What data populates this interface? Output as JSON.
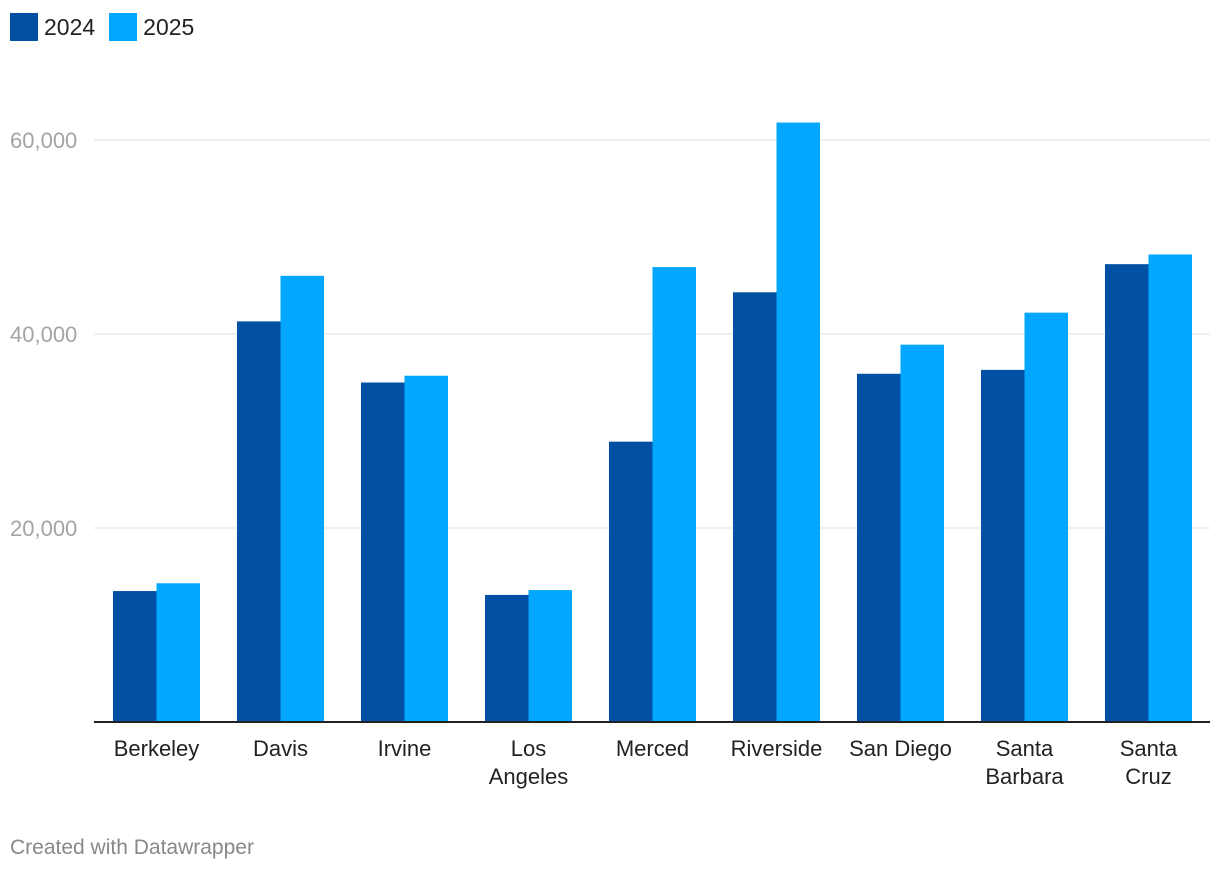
{
  "chart_data": {
    "type": "bar",
    "title": "",
    "xlabel": "",
    "ylabel": "",
    "categories": [
      [
        "Berkeley"
      ],
      [
        "Davis"
      ],
      [
        "Irvine"
      ],
      [
        "Los",
        "Angeles"
      ],
      [
        "Merced"
      ],
      [
        "Riverside"
      ],
      [
        "San Diego"
      ],
      [
        "Santa",
        "Barbara"
      ],
      [
        "Santa",
        "Cruz"
      ]
    ],
    "series": [
      {
        "name": "2024",
        "color": "#0250a4",
        "values": [
          13500,
          41300,
          35000,
          13100,
          28900,
          44300,
          35900,
          36300,
          47200
        ]
      },
      {
        "name": "2025",
        "color": "#03a7fd",
        "values": [
          14300,
          46000,
          35700,
          13600,
          46900,
          61800,
          38900,
          42200,
          48200
        ]
      }
    ],
    "yticks": [
      20000,
      40000,
      60000
    ],
    "ytick_labels": [
      "20,000",
      "40,000",
      "60,000"
    ],
    "ylim": [
      0,
      60000
    ],
    "grid": true,
    "legend_position": "top-left"
  },
  "footer": {
    "credit": "Created with Datawrapper"
  }
}
